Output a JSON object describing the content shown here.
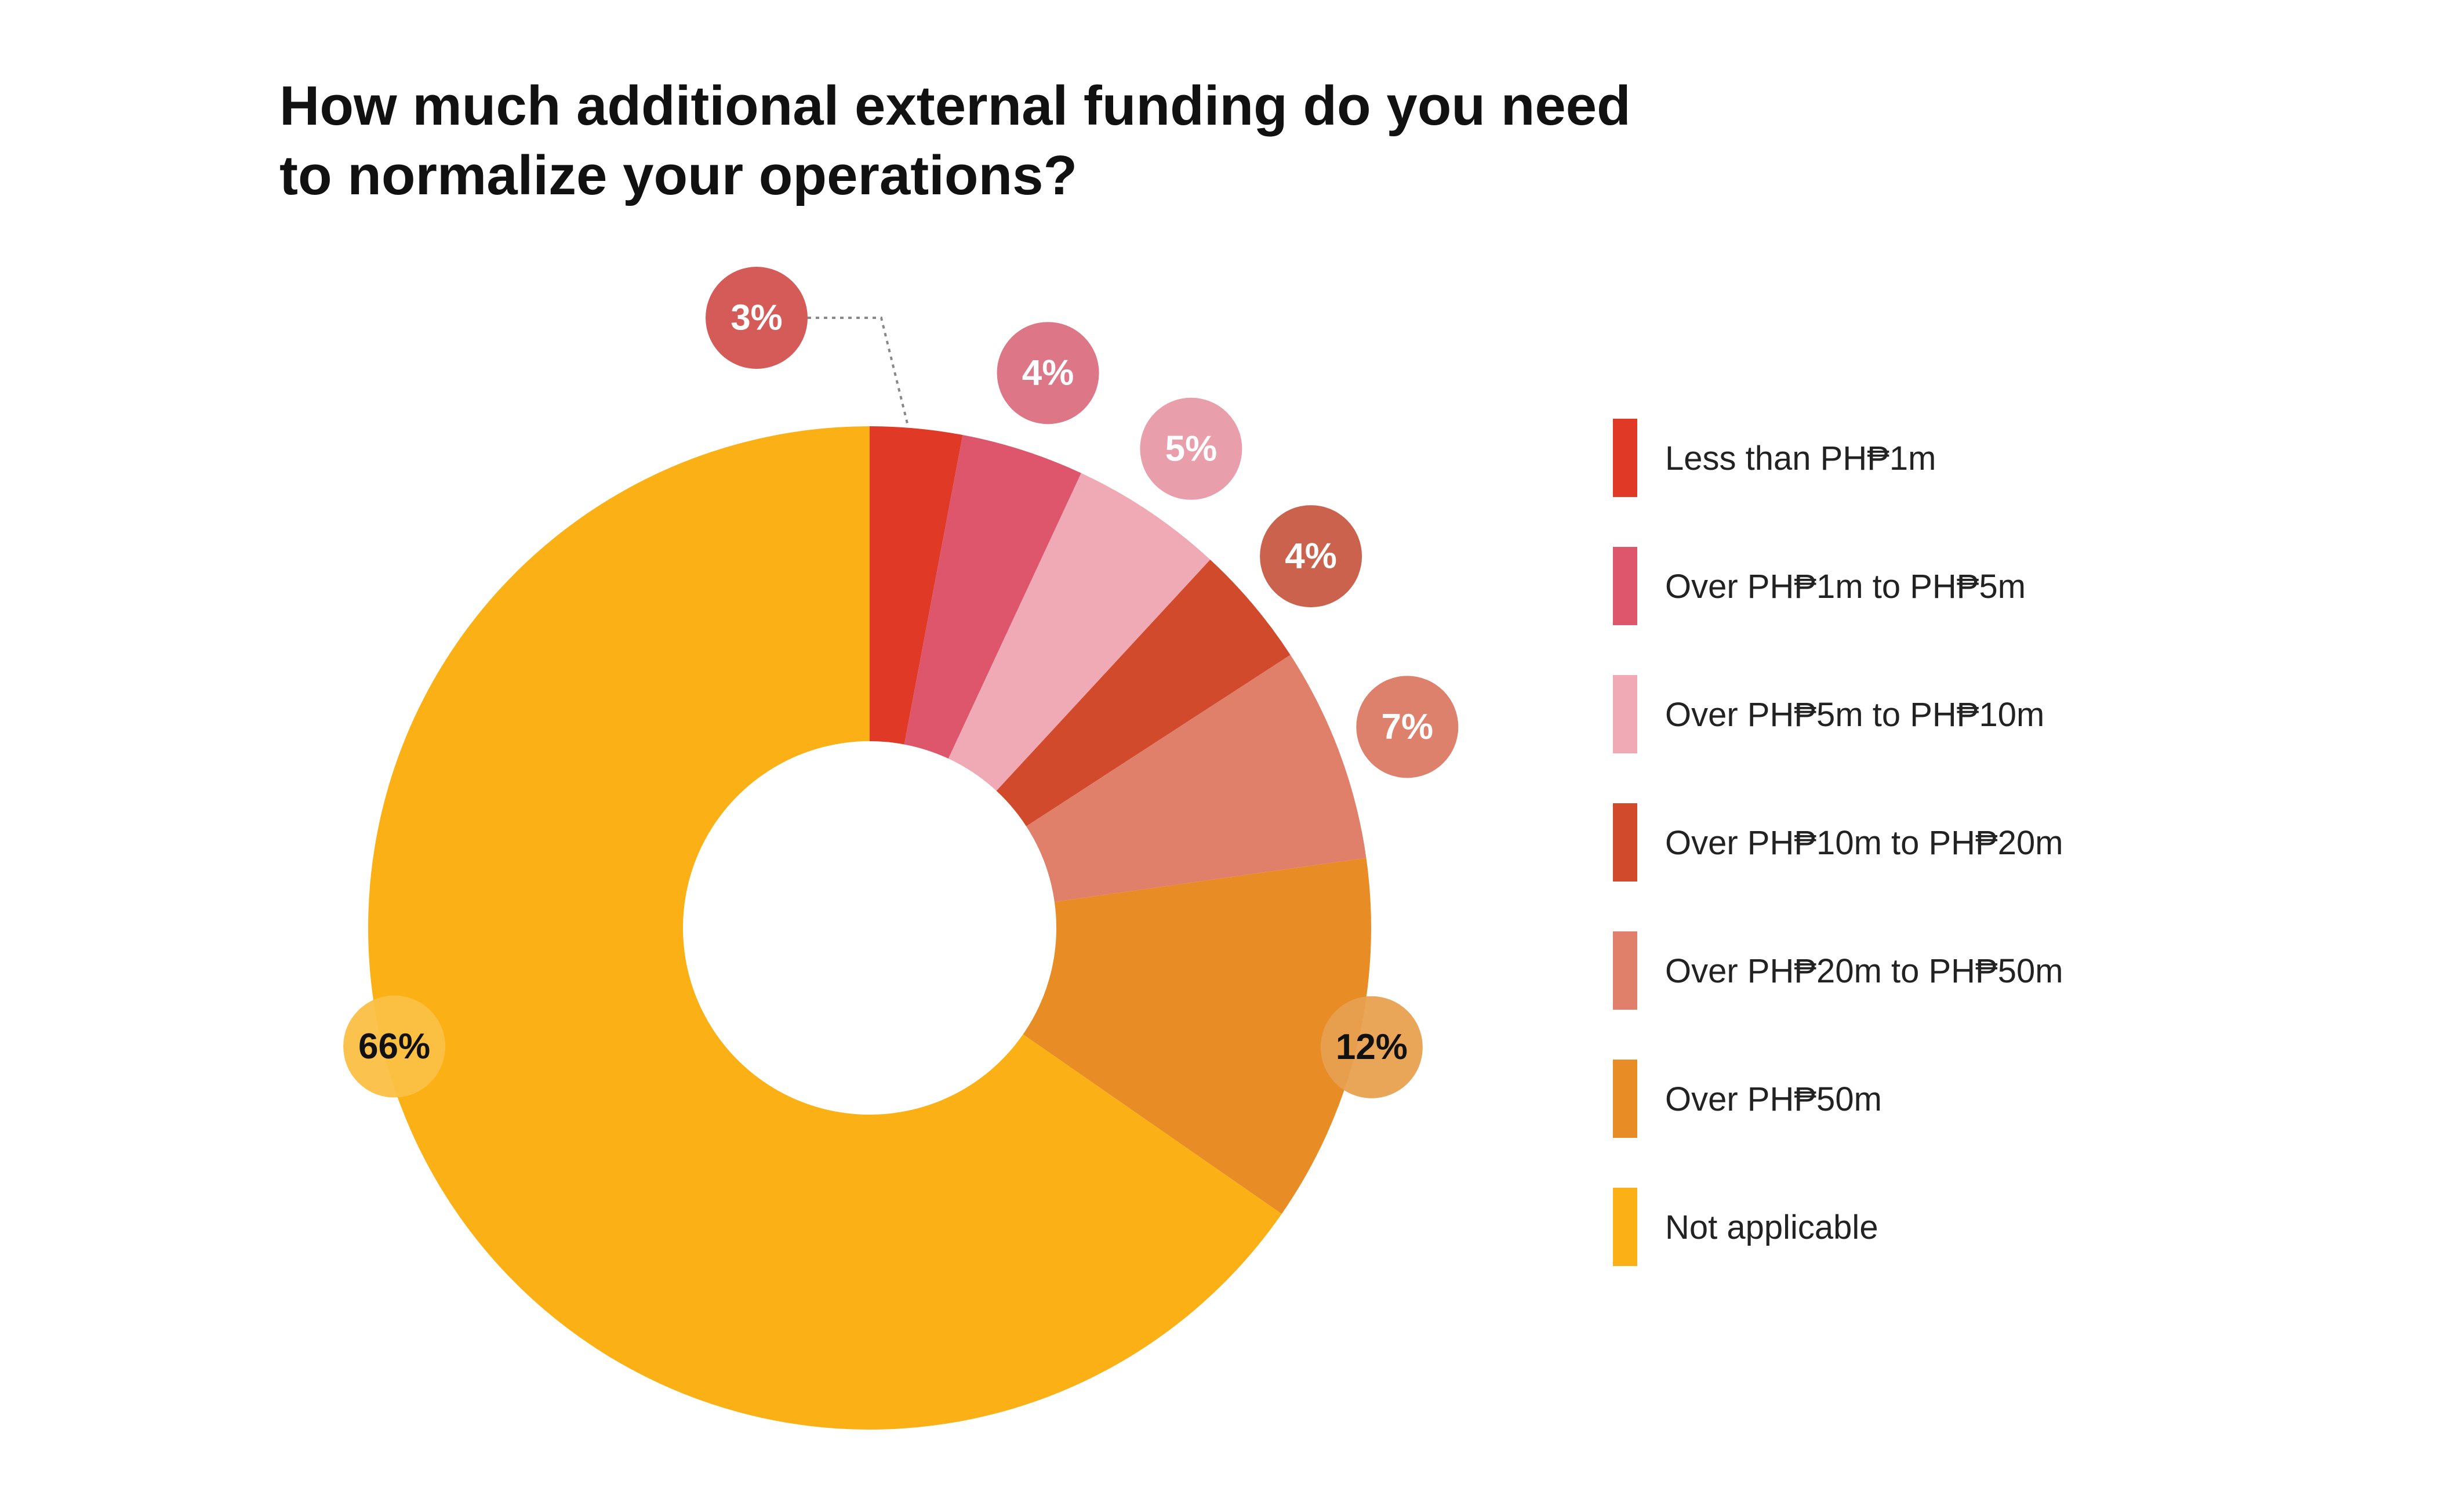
{
  "chart_data": {
    "type": "pie",
    "title_lines": [
      "How much additional external funding do you need",
      "to normalize your operations?"
    ],
    "slices": [
      {
        "label": "Less than PH₱1m",
        "value": 3,
        "display": "3%",
        "color": "#E03A27",
        "badge_color": "#D2524F",
        "badge_text_color": "#ffffff"
      },
      {
        "label": "Over PH₱1m to PH₱5m",
        "value": 4,
        "display": "4%",
        "color": "#DE566C",
        "badge_color": "#DB6F80",
        "badge_text_color": "#ffffff"
      },
      {
        "label": "Over PH₱5m to PH₱10m",
        "value": 5,
        "display": "5%",
        "color": "#EFAAB6",
        "badge_color": "#E89AA6",
        "badge_text_color": "#ffffff"
      },
      {
        "label": "Over PH₱10m to PH₱20m",
        "value": 4,
        "display": "4%",
        "color": "#D14A2B",
        "badge_color": "#C85A44",
        "badge_text_color": "#ffffff"
      },
      {
        "label": "Over PH₱20m to PH₱50m",
        "value": 7,
        "display": "7%",
        "color": "#E07F6A",
        "badge_color": "#DB7A65",
        "badge_text_color": "#ffffff"
      },
      {
        "label": "Over PH₱50m",
        "value": 12,
        "display": "12%",
        "color": "#E88C26",
        "badge_color": "#E8A04F",
        "badge_text_color": "#111111"
      },
      {
        "label": "Not applicable",
        "value": 66,
        "display": "66%",
        "color": "#FBB116",
        "badge_color": "#FBC043",
        "badge_text_color": "#111111"
      }
    ],
    "legend_position": "right"
  }
}
